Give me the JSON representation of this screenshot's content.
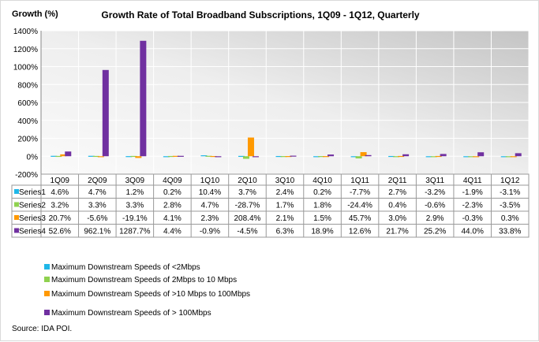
{
  "chart_data": {
    "type": "bar",
    "title": "Growth Rate of Total Broadband Subscriptions, 1Q09 - 1Q12, Quarterly",
    "ylabel": "Growth (%)",
    "ylim": [
      -200,
      1400
    ],
    "yticks": [
      "-200%",
      "0%",
      "200%",
      "400%",
      "600%",
      "800%",
      "1000%",
      "1200%",
      "1400%"
    ],
    "ytick_values": [
      -200,
      0,
      200,
      400,
      600,
      800,
      1000,
      1200,
      1400
    ],
    "grid": true,
    "categories": [
      "1Q09",
      "2Q09",
      "3Q09",
      "4Q09",
      "1Q10",
      "2Q10",
      "3Q10",
      "4Q10",
      "1Q11",
      "2Q11",
      "3Q11",
      "4Q11",
      "1Q12"
    ],
    "series": [
      {
        "name": "Series1",
        "color": "#1fb7e8",
        "values": [
          4.6,
          4.7,
          1.2,
          0.2,
          10.4,
          3.7,
          2.4,
          0.2,
          -7.7,
          2.7,
          -3.2,
          -1.9,
          -3.1
        ],
        "labels": [
          "4.6%",
          "4.7%",
          "1.2%",
          "0.2%",
          "10.4%",
          "3.7%",
          "2.4%",
          "0.2%",
          "-7.7%",
          "2.7%",
          "-3.2%",
          "-1.9%",
          "-3.1%"
        ]
      },
      {
        "name": "Series2",
        "color": "#8fd14f",
        "values": [
          3.2,
          3.3,
          3.3,
          2.8,
          4.7,
          -28.7,
          1.7,
          1.8,
          -24.4,
          0.4,
          -0.6,
          -2.3,
          -3.5
        ],
        "labels": [
          "3.2%",
          "3.3%",
          "3.3%",
          "2.8%",
          "4.7%",
          "-28.7%",
          "1.7%",
          "1.8%",
          "-24.4%",
          "0.4%",
          "-0.6%",
          "-2.3%",
          "-3.5%"
        ]
      },
      {
        "name": "Series3",
        "color": "#ff9900",
        "values": [
          20.7,
          -5.6,
          -19.1,
          4.1,
          2.3,
          208.4,
          2.1,
          1.5,
          45.7,
          3.0,
          2.9,
          -0.3,
          0.3
        ],
        "labels": [
          "20.7%",
          "-5.6%",
          "-19.1%",
          "4.1%",
          "2.3%",
          "208.4%",
          "2.1%",
          "1.5%",
          "45.7%",
          "3.0%",
          "2.9%",
          "-0.3%",
          "0.3%"
        ]
      },
      {
        "name": "Series4",
        "color": "#7030a0",
        "values": [
          52.6,
          962.1,
          1287.7,
          4.4,
          -0.9,
          -4.5,
          6.3,
          18.9,
          12.6,
          21.7,
          25.2,
          44.0,
          33.8
        ],
        "labels": [
          "52.6%",
          "962.1%",
          "1287.7%",
          "4.4%",
          "-0.9%",
          "-4.5%",
          "6.3%",
          "18.9%",
          "12.6%",
          "21.7%",
          "25.2%",
          "44.0%",
          "33.8%"
        ]
      }
    ],
    "legend": [
      "Maximum Downstream Speeds of  <2Mbps",
      "Maximum Downstream Speeds of  2Mbps to 10 Mbps",
      "Maximum Downstream Speeds of  >10 Mbps to 100Mbps",
      "Maximum Downstream Speeds of > 100Mbps"
    ],
    "legend_placement": "bottom-left",
    "source": "Source: IDA POI."
  }
}
